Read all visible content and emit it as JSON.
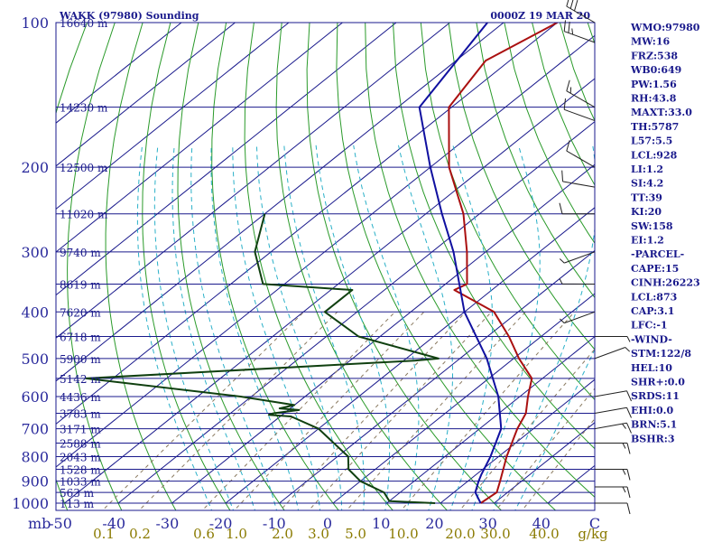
{
  "header": {
    "title": "WAKK (97980) Sounding",
    "datetime": "0000Z 19 MAR 20"
  },
  "chart_data": {
    "type": "line",
    "subtype": "skew-T log-P sounding",
    "pressure_unit_label": "mb",
    "pressure_levels": [
      100,
      200,
      300,
      400,
      500,
      600,
      700,
      800,
      900,
      1000
    ],
    "height_labels": [
      {
        "p": 100,
        "text": "16640 m"
      },
      {
        "p": 150,
        "text": "14230 m"
      },
      {
        "p": 200,
        "text": "12500 m"
      },
      {
        "p": 250,
        "text": "11020 m"
      },
      {
        "p": 300,
        "text": "9740 m"
      },
      {
        "p": 350,
        "text": "8619 m"
      },
      {
        "p": 400,
        "text": "7620 m"
      },
      {
        "p": 450,
        "text": "6718 m"
      },
      {
        "p": 500,
        "text": "5900 m"
      },
      {
        "p": 550,
        "text": "5142 m"
      },
      {
        "p": 600,
        "text": "4436 m"
      },
      {
        "p": 650,
        "text": "3783 m"
      },
      {
        "p": 700,
        "text": "3171 m"
      },
      {
        "p": 750,
        "text": "2588 m"
      },
      {
        "p": 800,
        "text": "2043 m"
      },
      {
        "p": 850,
        "text": "1528 m"
      },
      {
        "p": 900,
        "text": "1033 m"
      },
      {
        "p": 950,
        "text": "563 m"
      },
      {
        "p": 1000,
        "text": "113 m"
      }
    ],
    "temperature_ticks": [
      "-50",
      "-40",
      "-30",
      "-20",
      "-10",
      "0",
      "10",
      "20",
      "30",
      "40",
      "C"
    ],
    "mixing_ratio_labels": [
      "0.1",
      "0.2",
      "0.6",
      "1.0",
      "2.0",
      "3.0",
      "5.0",
      "10.0",
      "20.0",
      "30.0",
      "40.0",
      "g/kg"
    ],
    "series": [
      {
        "role": "temperature",
        "color": "#aa1010",
        "points": [
          [
            100,
            -70
          ],
          [
            120,
            -74.5
          ],
          [
            150,
            -70.5
          ],
          [
            200,
            -56.5
          ],
          [
            250,
            -43
          ],
          [
            300,
            -33.5
          ],
          [
            350,
            -26
          ],
          [
            360,
            -27
          ],
          [
            400,
            -14.5
          ],
          [
            450,
            -6
          ],
          [
            500,
            1
          ],
          [
            550,
            8
          ],
          [
            600,
            11.5
          ],
          [
            650,
            15
          ],
          [
            700,
            17
          ],
          [
            800,
            21.5
          ],
          [
            900,
            26
          ],
          [
            950,
            28
          ],
          [
            1000,
            27.5
          ]
        ]
      },
      {
        "role": "dewpoint",
        "color": "#104010",
        "points": [
          [
            250,
            -80
          ],
          [
            300,
            -73
          ],
          [
            350,
            -64
          ],
          [
            360,
            -46
          ],
          [
            400,
            -46
          ],
          [
            450,
            -34
          ],
          [
            500,
            -14
          ],
          [
            505,
            -18
          ],
          [
            550,
            -75
          ],
          [
            600,
            -42
          ],
          [
            625,
            -30
          ],
          [
            635,
            -32
          ],
          [
            640,
            -28
          ],
          [
            650,
            -32
          ],
          [
            655,
            -32.5
          ],
          [
            660,
            -28
          ],
          [
            700,
            -20
          ],
          [
            800,
            -8
          ],
          [
            850,
            -5
          ],
          [
            900,
            0
          ],
          [
            950,
            7
          ],
          [
            990,
            10
          ],
          [
            1000,
            19
          ]
        ]
      },
      {
        "role": "parcel",
        "color": "#1010a0",
        "points": [
          [
            100,
            -83
          ],
          [
            150,
            -76
          ],
          [
            200,
            -60
          ],
          [
            250,
            -47
          ],
          [
            300,
            -36
          ],
          [
            400,
            -20
          ],
          [
            500,
            -5
          ],
          [
            600,
            6
          ],
          [
            700,
            14
          ],
          [
            800,
            18.5
          ],
          [
            873,
            21
          ],
          [
            900,
            22
          ],
          [
            950,
            24
          ],
          [
            1000,
            27.5
          ]
        ]
      }
    ],
    "wind_barbs": [
      {
        "p": 100,
        "dir": 300,
        "spd": 30
      },
      {
        "p": 110,
        "dir": 290,
        "spd": 25
      },
      {
        "p": 150,
        "dir": 300,
        "spd": 15
      },
      {
        "p": 160,
        "dir": 290,
        "spd": 10
      },
      {
        "p": 200,
        "dir": 300,
        "spd": 10
      },
      {
        "p": 220,
        "dir": 280,
        "spd": 10
      },
      {
        "p": 250,
        "dir": 270,
        "spd": 10
      },
      {
        "p": 300,
        "dir": 250,
        "spd": 5
      },
      {
        "p": 350,
        "dir": 270,
        "spd": 5
      },
      {
        "p": 400,
        "dir": 250,
        "spd": 5
      },
      {
        "p": 450,
        "dir": 90,
        "spd": 5
      },
      {
        "p": 500,
        "dir": 70,
        "spd": 5
      },
      {
        "p": 600,
        "dir": 80,
        "spd": 10
      },
      {
        "p": 650,
        "dir": 80,
        "spd": 10
      },
      {
        "p": 700,
        "dir": 80,
        "spd": 15
      },
      {
        "p": 750,
        "dir": 90,
        "spd": 15
      },
      {
        "p": 850,
        "dir": 90,
        "spd": 15
      },
      {
        "p": 925,
        "dir": 90,
        "spd": 15
      },
      {
        "p": 1000,
        "dir": 90,
        "spd": 10
      }
    ]
  },
  "indices": [
    "WMO:97980",
    "MW:16",
    "FRZ:538",
    "WB0:649",
    "PW:1.56",
    "RH:43.8",
    "MAXT:33.0",
    "TH:5787",
    "L57:5.5",
    "LCL:928",
    "LI:1.2",
    "SI:4.2",
    "TT:39",
    "KI:20",
    "SW:158",
    "EI:1.2",
    "-PARCEL-",
    "CAPE:15",
    "CINH:26223",
    "LCL:873",
    "CAP:3.1",
    "LFC:-1",
    "-WIND-",
    "STM:122/8",
    "HEL:10",
    "SHR+:0.0",
    "SRDS:11",
    "EHI:0.0",
    "BRN:5.1",
    "BSHR:3"
  ],
  "colors": {
    "isobar": "#1a1a8c",
    "isotherm": "#1a1a8c",
    "dry_adiabat": "#2a9a2a",
    "moist_adiabat": "#2ab0c8",
    "mixing_ratio": "#8a7a60",
    "mixing_ratio_label": "#8a7a00",
    "temperature": "#aa1010",
    "dewpoint": "#104010",
    "parcel": "#1010a0",
    "barb": "#222222"
  }
}
